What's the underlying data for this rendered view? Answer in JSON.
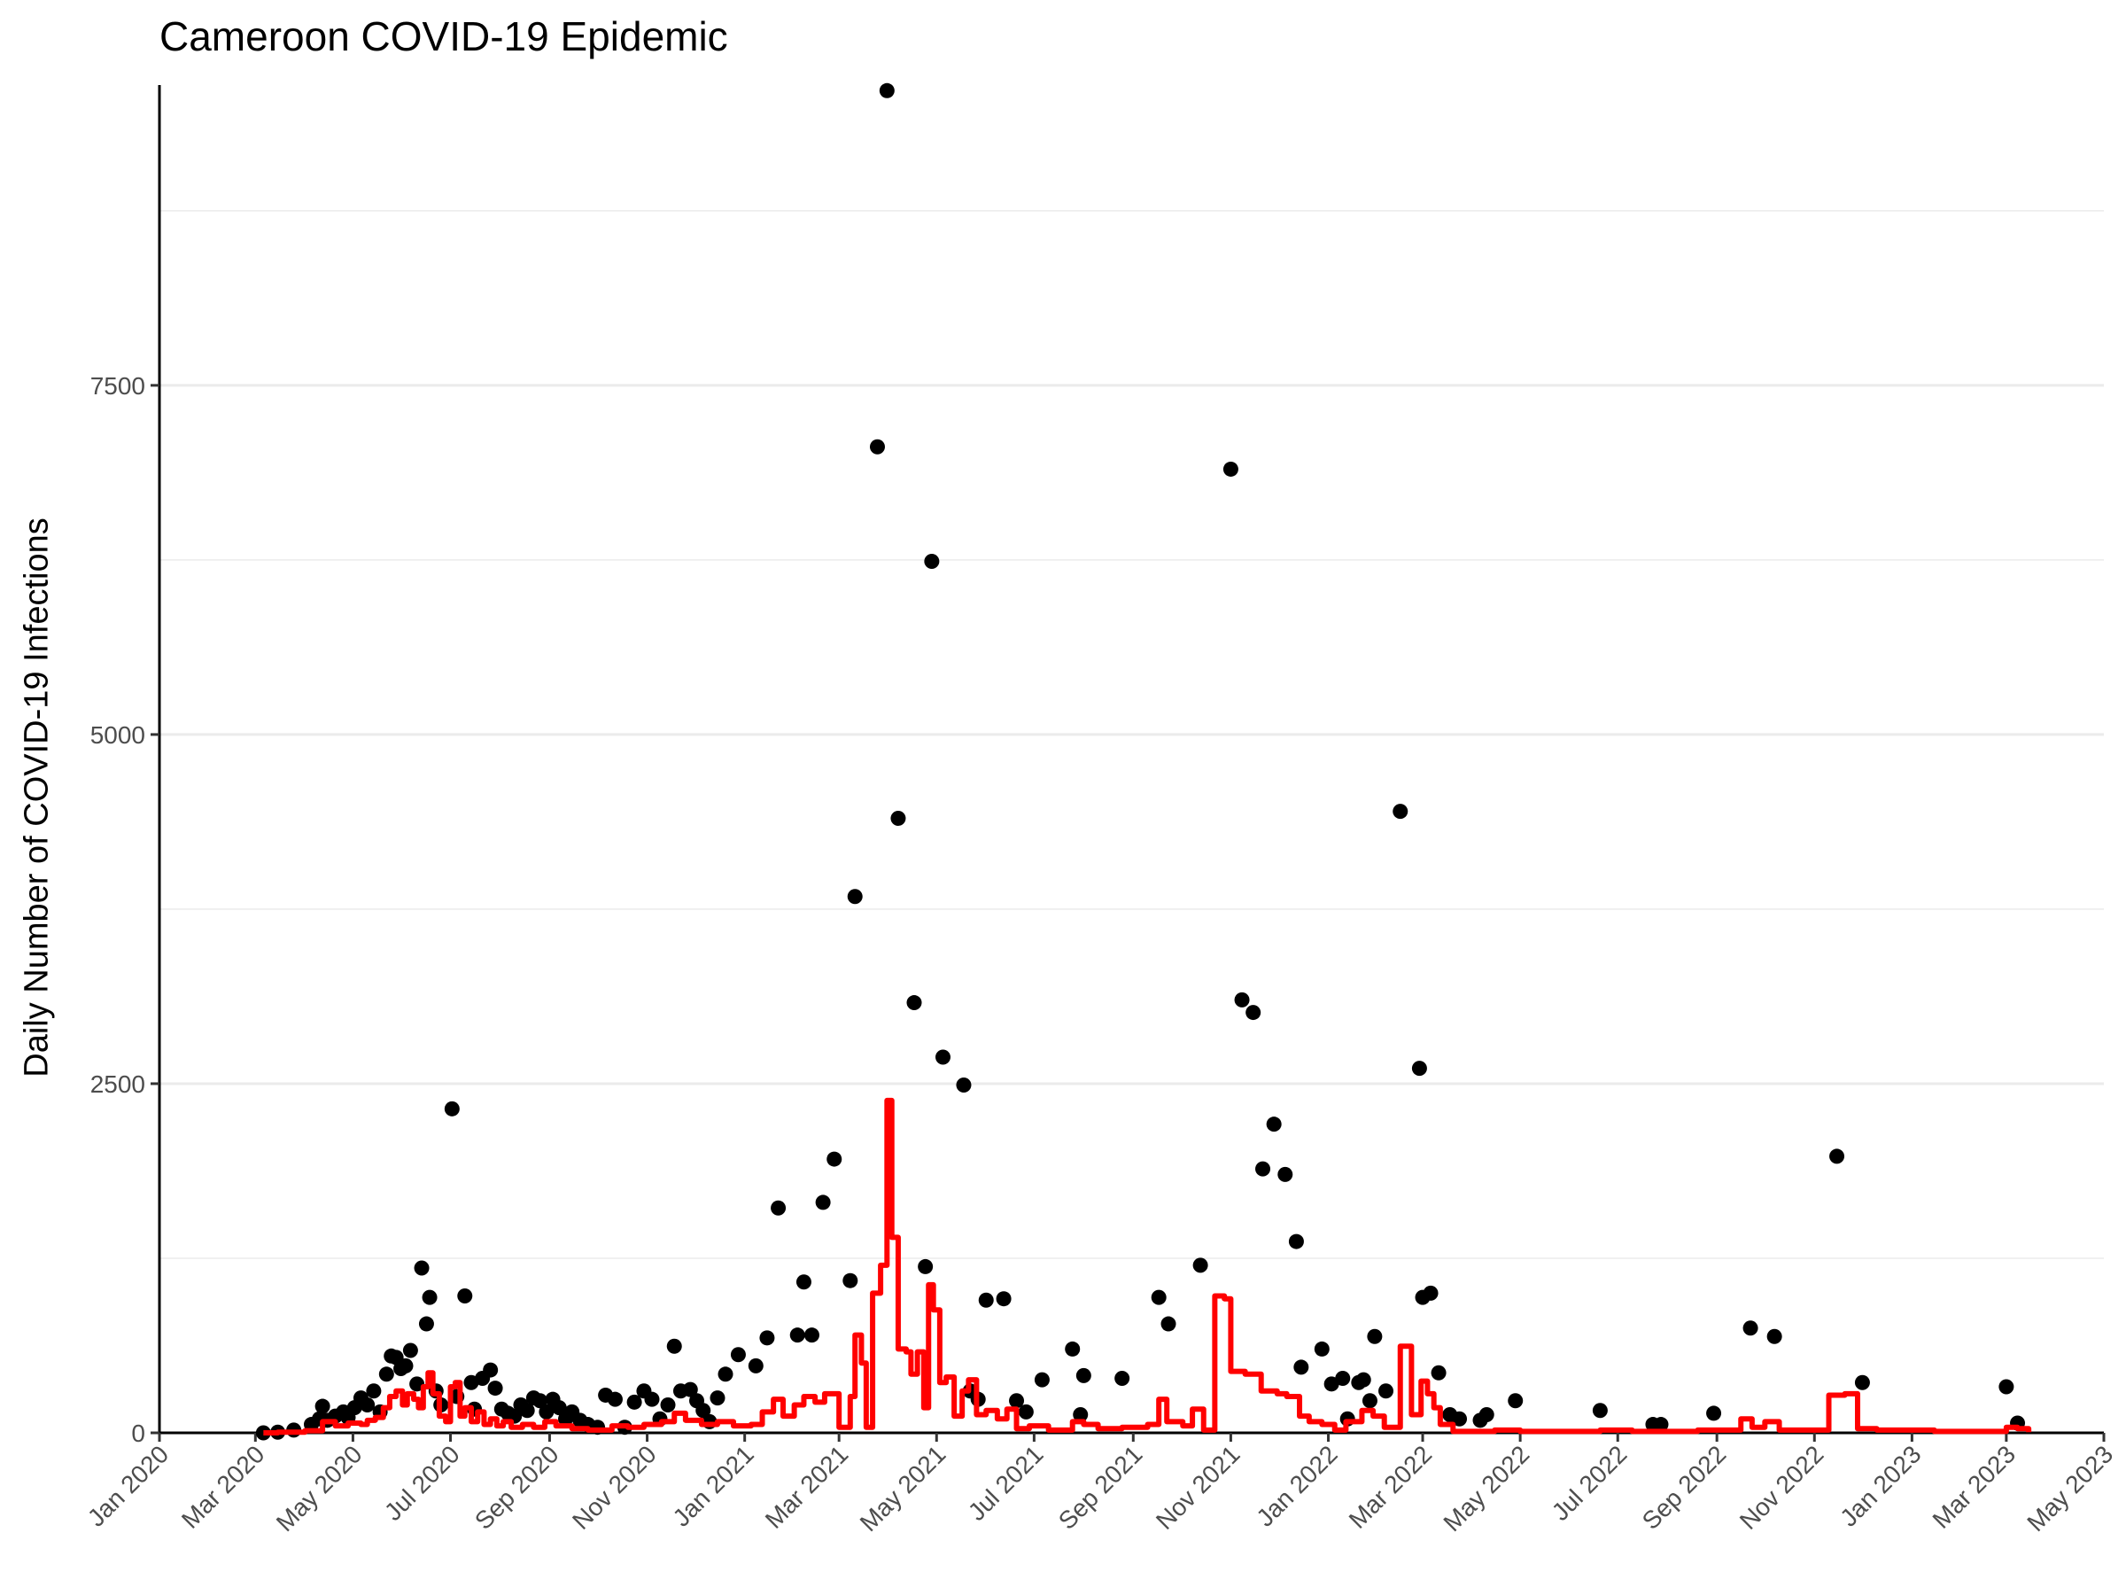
{
  "chart_data": {
    "type": "scatter",
    "title": "Cameroon COVID-19 Epidemic",
    "ylabel": "Daily Number of COVID-19 Infections",
    "xlabel": "",
    "xlim": [
      "2020-01-01",
      "2023-05-01"
    ],
    "ylim": [
      0,
      9650
    ],
    "y_ticks": [
      0,
      2500,
      5000,
      7500
    ],
    "y_tick_labels": [
      "0",
      "2500",
      "5000",
      "7500"
    ],
    "x_ticks": [
      "2020-01-01",
      "2020-03-01",
      "2020-05-01",
      "2020-07-01",
      "2020-09-01",
      "2020-11-01",
      "2021-01-01",
      "2021-03-01",
      "2021-05-01",
      "2021-07-01",
      "2021-09-01",
      "2021-11-01",
      "2022-01-01",
      "2022-03-01",
      "2022-05-01",
      "2022-07-01",
      "2022-09-01",
      "2022-11-01",
      "2023-01-01",
      "2023-03-01",
      "2023-05-01"
    ],
    "x_tick_labels": [
      "Jan 2020",
      "Mar 2020",
      "May 2020",
      "Jul 2020",
      "Sep 2020",
      "Nov 2020",
      "Jan 2021",
      "Mar 2021",
      "May 2021",
      "Jul 2021",
      "Sep 2021",
      "Nov 2021",
      "Jan 2022",
      "Mar 2022",
      "May 2022",
      "Jul 2022",
      "Sep 2022",
      "Nov 2022",
      "Jan 2023",
      "Mar 2023",
      "May 2023"
    ],
    "grid": "horizontal",
    "legend": "none",
    "series": [
      {
        "type": "scatter",
        "color": "#000000",
        "points": [
          [
            "2020-03-06",
            0
          ],
          [
            "2020-03-15",
            5
          ],
          [
            "2020-03-25",
            20
          ],
          [
            "2020-04-05",
            60
          ],
          [
            "2020-04-10",
            100
          ],
          [
            "2020-04-12",
            190
          ],
          [
            "2020-04-15",
            90
          ],
          [
            "2020-04-20",
            120
          ],
          [
            "2020-04-25",
            150
          ],
          [
            "2020-04-28",
            110
          ],
          [
            "2020-05-02",
            180
          ],
          [
            "2020-05-06",
            250
          ],
          [
            "2020-05-10",
            200
          ],
          [
            "2020-05-14",
            300
          ],
          [
            "2020-05-18",
            150
          ],
          [
            "2020-05-22",
            420
          ],
          [
            "2020-05-25",
            550
          ],
          [
            "2020-05-28",
            540
          ],
          [
            "2020-05-31",
            460
          ],
          [
            "2020-06-03",
            480
          ],
          [
            "2020-06-06",
            590
          ],
          [
            "2020-06-10",
            350
          ],
          [
            "2020-06-13",
            1180
          ],
          [
            "2020-06-16",
            780
          ],
          [
            "2020-06-18",
            970
          ],
          [
            "2020-06-22",
            300
          ],
          [
            "2020-06-25",
            200
          ],
          [
            "2020-07-02",
            2320
          ],
          [
            "2020-07-05",
            260
          ],
          [
            "2020-07-10",
            980
          ],
          [
            "2020-07-14",
            360
          ],
          [
            "2020-07-16",
            170
          ],
          [
            "2020-07-21",
            390
          ],
          [
            "2020-07-26",
            450
          ],
          [
            "2020-07-29",
            320
          ],
          [
            "2020-08-02",
            170
          ],
          [
            "2020-08-06",
            140
          ],
          [
            "2020-08-10",
            120
          ],
          [
            "2020-08-14",
            200
          ],
          [
            "2020-08-18",
            160
          ],
          [
            "2020-08-22",
            250
          ],
          [
            "2020-08-26",
            230
          ],
          [
            "2020-08-30",
            150
          ],
          [
            "2020-09-03",
            240
          ],
          [
            "2020-09-07",
            180
          ],
          [
            "2020-09-11",
            100
          ],
          [
            "2020-09-15",
            150
          ],
          [
            "2020-09-20",
            90
          ],
          [
            "2020-09-25",
            60
          ],
          [
            "2020-10-01",
            40
          ],
          [
            "2020-10-06",
            270
          ],
          [
            "2020-10-12",
            240
          ],
          [
            "2020-10-18",
            40
          ],
          [
            "2020-10-24",
            220
          ],
          [
            "2020-10-30",
            300
          ],
          [
            "2020-11-04",
            240
          ],
          [
            "2020-11-09",
            100
          ],
          [
            "2020-11-14",
            200
          ],
          [
            "2020-11-18",
            620
          ],
          [
            "2020-11-22",
            300
          ],
          [
            "2020-11-28",
            310
          ],
          [
            "2020-12-02",
            230
          ],
          [
            "2020-12-06",
            160
          ],
          [
            "2020-12-10",
            80
          ],
          [
            "2020-12-15",
            250
          ],
          [
            "2020-12-20",
            420
          ],
          [
            "2020-12-28",
            560
          ],
          [
            "2021-01-08",
            480
          ],
          [
            "2021-01-15",
            680
          ],
          [
            "2021-01-22",
            1610
          ],
          [
            "2021-02-03",
            700
          ],
          [
            "2021-02-07",
            1080
          ],
          [
            "2021-02-12",
            700
          ],
          [
            "2021-02-19",
            1650
          ],
          [
            "2021-02-26",
            1960
          ],
          [
            "2021-03-08",
            1090
          ],
          [
            "2021-03-11",
            3840
          ],
          [
            "2021-03-25",
            7060
          ],
          [
            "2021-03-31",
            9610
          ],
          [
            "2021-04-07",
            4400
          ],
          [
            "2021-04-17",
            3080
          ],
          [
            "2021-04-24",
            1190
          ],
          [
            "2021-04-28",
            6240
          ],
          [
            "2021-05-05",
            2690
          ],
          [
            "2021-05-18",
            2490
          ],
          [
            "2021-05-22",
            300
          ],
          [
            "2021-05-27",
            240
          ],
          [
            "2021-06-01",
            950
          ],
          [
            "2021-06-12",
            960
          ],
          [
            "2021-06-20",
            230
          ],
          [
            "2021-06-26",
            150
          ],
          [
            "2021-07-06",
            380
          ],
          [
            "2021-07-25",
            600
          ],
          [
            "2021-07-30",
            130
          ],
          [
            "2021-08-01",
            410
          ],
          [
            "2021-08-25",
            390
          ],
          [
            "2021-09-17",
            970
          ],
          [
            "2021-09-23",
            780
          ],
          [
            "2021-10-13",
            1200
          ],
          [
            "2021-11-01",
            6900
          ],
          [
            "2021-11-08",
            3100
          ],
          [
            "2021-11-15",
            3010
          ],
          [
            "2021-11-21",
            1890
          ],
          [
            "2021-11-28",
            2210
          ],
          [
            "2021-12-05",
            1850
          ],
          [
            "2021-12-12",
            1370
          ],
          [
            "2021-12-15",
            470
          ],
          [
            "2021-12-28",
            600
          ],
          [
            "2022-01-03",
            350
          ],
          [
            "2022-01-10",
            390
          ],
          [
            "2022-01-13",
            100
          ],
          [
            "2022-01-20",
            360
          ],
          [
            "2022-01-23",
            380
          ],
          [
            "2022-01-27",
            230
          ],
          [
            "2022-01-30",
            690
          ],
          [
            "2022-02-06",
            300
          ],
          [
            "2022-02-15",
            4450
          ],
          [
            "2022-02-27",
            2610
          ],
          [
            "2022-03-01",
            970
          ],
          [
            "2022-03-06",
            1000
          ],
          [
            "2022-03-11",
            430
          ],
          [
            "2022-03-18",
            130
          ],
          [
            "2022-03-24",
            100
          ],
          [
            "2022-04-06",
            90
          ],
          [
            "2022-04-10",
            130
          ],
          [
            "2022-04-28",
            230
          ],
          [
            "2022-06-20",
            160
          ],
          [
            "2022-07-23",
            60
          ],
          [
            "2022-07-28",
            60
          ],
          [
            "2022-08-30",
            140
          ],
          [
            "2022-09-22",
            750
          ],
          [
            "2022-10-07",
            690
          ],
          [
            "2022-11-15",
            1980
          ],
          [
            "2022-12-01",
            360
          ],
          [
            "2023-03-01",
            330
          ],
          [
            "2023-03-08",
            70
          ]
        ]
      },
      {
        "type": "line",
        "color": "#ff0000",
        "points": [
          [
            "2020-03-06",
            0
          ],
          [
            "2020-03-15",
            5
          ],
          [
            "2020-04-01",
            15
          ],
          [
            "2020-04-12",
            80
          ],
          [
            "2020-04-20",
            50
          ],
          [
            "2020-04-28",
            70
          ],
          [
            "2020-05-06",
            60
          ],
          [
            "2020-05-10",
            90
          ],
          [
            "2020-05-15",
            110
          ],
          [
            "2020-05-20",
            180
          ],
          [
            "2020-05-24",
            260
          ],
          [
            "2020-05-28",
            300
          ],
          [
            "2020-06-01",
            200
          ],
          [
            "2020-06-04",
            280
          ],
          [
            "2020-06-08",
            240
          ],
          [
            "2020-06-11",
            180
          ],
          [
            "2020-06-14",
            330
          ],
          [
            "2020-06-17",
            430
          ],
          [
            "2020-06-20",
            280
          ],
          [
            "2020-06-24",
            120
          ],
          [
            "2020-06-28",
            80
          ],
          [
            "2020-07-01",
            330
          ],
          [
            "2020-07-04",
            360
          ],
          [
            "2020-07-07",
            120
          ],
          [
            "2020-07-10",
            180
          ],
          [
            "2020-07-14",
            80
          ],
          [
            "2020-07-18",
            150
          ],
          [
            "2020-07-22",
            60
          ],
          [
            "2020-07-26",
            100
          ],
          [
            "2020-07-30",
            50
          ],
          [
            "2020-08-03",
            80
          ],
          [
            "2020-08-08",
            40
          ],
          [
            "2020-08-15",
            60
          ],
          [
            "2020-08-22",
            40
          ],
          [
            "2020-08-29",
            80
          ],
          [
            "2020-09-05",
            50
          ],
          [
            "2020-09-15",
            30
          ],
          [
            "2020-09-25",
            20
          ],
          [
            "2020-10-10",
            50
          ],
          [
            "2020-10-20",
            40
          ],
          [
            "2020-10-30",
            60
          ],
          [
            "2020-11-10",
            80
          ],
          [
            "2020-11-18",
            140
          ],
          [
            "2020-11-25",
            90
          ],
          [
            "2020-12-05",
            60
          ],
          [
            "2020-12-15",
            80
          ],
          [
            "2020-12-25",
            50
          ],
          [
            "2021-01-05",
            60
          ],
          [
            "2021-01-12",
            150
          ],
          [
            "2021-01-19",
            240
          ],
          [
            "2021-01-25",
            120
          ],
          [
            "2021-02-01",
            200
          ],
          [
            "2021-02-07",
            260
          ],
          [
            "2021-02-14",
            220
          ],
          [
            "2021-02-20",
            280
          ],
          [
            "2021-03-01",
            40
          ],
          [
            "2021-03-08",
            260
          ],
          [
            "2021-03-11",
            700
          ],
          [
            "2021-03-15",
            500
          ],
          [
            "2021-03-18",
            40
          ],
          [
            "2021-03-22",
            1000
          ],
          [
            "2021-03-27",
            1200
          ],
          [
            "2021-03-31",
            2380
          ],
          [
            "2021-04-03",
            1400
          ],
          [
            "2021-04-07",
            600
          ],
          [
            "2021-04-12",
            580
          ],
          [
            "2021-04-15",
            420
          ],
          [
            "2021-04-19",
            580
          ],
          [
            "2021-04-23",
            180
          ],
          [
            "2021-04-26",
            1060
          ],
          [
            "2021-04-29",
            880
          ],
          [
            "2021-05-03",
            360
          ],
          [
            "2021-05-07",
            400
          ],
          [
            "2021-05-12",
            120
          ],
          [
            "2021-05-17",
            300
          ],
          [
            "2021-05-21",
            380
          ],
          [
            "2021-05-26",
            130
          ],
          [
            "2021-06-01",
            160
          ],
          [
            "2021-06-08",
            100
          ],
          [
            "2021-06-14",
            170
          ],
          [
            "2021-06-20",
            30
          ],
          [
            "2021-06-28",
            50
          ],
          [
            "2021-07-10",
            20
          ],
          [
            "2021-07-25",
            80
          ],
          [
            "2021-08-01",
            60
          ],
          [
            "2021-08-10",
            30
          ],
          [
            "2021-08-25",
            40
          ],
          [
            "2021-09-10",
            60
          ],
          [
            "2021-09-17",
            240
          ],
          [
            "2021-09-22",
            80
          ],
          [
            "2021-10-02",
            50
          ],
          [
            "2021-10-08",
            170
          ],
          [
            "2021-10-15",
            20
          ],
          [
            "2021-10-22",
            980
          ],
          [
            "2021-10-28",
            960
          ],
          [
            "2021-11-01",
            440
          ],
          [
            "2021-11-10",
            420
          ],
          [
            "2021-11-20",
            300
          ],
          [
            "2021-11-30",
            280
          ],
          [
            "2021-12-06",
            260
          ],
          [
            "2021-12-14",
            120
          ],
          [
            "2021-12-20",
            80
          ],
          [
            "2021-12-28",
            60
          ],
          [
            "2022-01-05",
            20
          ],
          [
            "2022-01-12",
            80
          ],
          [
            "2022-01-22",
            160
          ],
          [
            "2022-01-29",
            120
          ],
          [
            "2022-02-05",
            40
          ],
          [
            "2022-02-15",
            620
          ],
          [
            "2022-02-22",
            130
          ],
          [
            "2022-02-28",
            370
          ],
          [
            "2022-03-04",
            280
          ],
          [
            "2022-03-08",
            180
          ],
          [
            "2022-03-12",
            60
          ],
          [
            "2022-03-20",
            10
          ],
          [
            "2022-04-15",
            20
          ],
          [
            "2022-05-01",
            10
          ],
          [
            "2022-06-20",
            20
          ],
          [
            "2022-07-10",
            10
          ],
          [
            "2022-08-20",
            20
          ],
          [
            "2022-09-16",
            100
          ],
          [
            "2022-09-23",
            40
          ],
          [
            "2022-10-01",
            80
          ],
          [
            "2022-10-10",
            20
          ],
          [
            "2022-11-05",
            20
          ],
          [
            "2022-11-10",
            270
          ],
          [
            "2022-11-20",
            280
          ],
          [
            "2022-11-28",
            30
          ],
          [
            "2022-12-10",
            20
          ],
          [
            "2023-01-15",
            10
          ],
          [
            "2023-02-25",
            10
          ],
          [
            "2023-03-01",
            40
          ],
          [
            "2023-03-08",
            30
          ],
          [
            "2023-03-15",
            5
          ]
        ]
      }
    ]
  }
}
